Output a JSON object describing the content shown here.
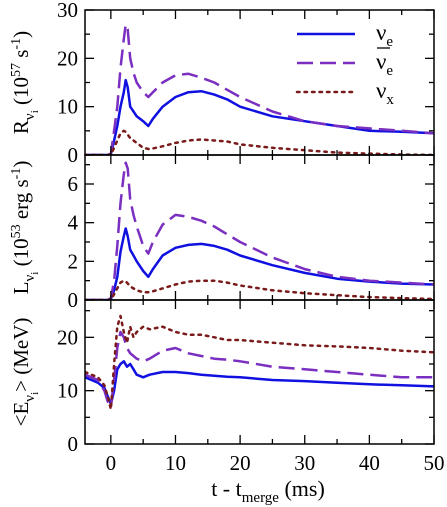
{
  "figure": {
    "xlabel": {
      "main": "t - t",
      "sub": "merge",
      "tail": " (ms)"
    }
  },
  "legend": {
    "placement": "top-right",
    "entries": [
      {
        "symbol": "ν",
        "sub": "e",
        "bar": false,
        "color": "#1010e0",
        "dash": "solid"
      },
      {
        "symbol": "ν",
        "sub": "e",
        "bar": true,
        "color": "#7a2fc0",
        "dash": "long-dash"
      },
      {
        "symbol": "ν",
        "sub": "x",
        "bar": false,
        "color": "#7a1a1a",
        "dash": "dotted"
      }
    ]
  },
  "colors": {
    "nue": "#1010e0",
    "nuebar": "#7a2fc0",
    "nux": "#7a1a1a"
  },
  "chart_data": [
    {
      "type": "line",
      "panel": "top",
      "ylabel": {
        "pre": "R",
        "sub": "ν",
        "subsub": "i",
        "post": " (10",
        "sup": "57",
        "tail": " s",
        "sup2": "-1",
        "close": ")"
      },
      "xlim": [
        -4,
        50
      ],
      "ylim": [
        0,
        30
      ],
      "yticks": [
        0,
        10,
        20,
        30
      ],
      "yticklabels": [
        "0",
        "10",
        "20",
        "30"
      ],
      "series": [
        {
          "key": "nue",
          "x": [
            -4,
            -2,
            -1,
            -0.5,
            0,
            0.5,
            1,
            1.5,
            2,
            2.3,
            2.6,
            3,
            3.5,
            4,
            5,
            5.8,
            6.5,
            8,
            10,
            12,
            14,
            16,
            18,
            20,
            25,
            30,
            35,
            40,
            45,
            50
          ],
          "y": [
            0,
            0,
            0,
            0,
            0.2,
            3,
            6,
            10,
            13,
            15.5,
            14,
            10,
            9,
            8,
            7,
            6,
            7.5,
            10,
            12,
            13,
            13.2,
            12.5,
            11.5,
            10,
            8,
            7,
            6,
            5,
            4.8,
            4.5
          ]
        },
        {
          "key": "nuebar",
          "x": [
            -4,
            -2,
            -1,
            -0.5,
            0,
            0.5,
            1,
            1.5,
            2,
            2.3,
            2.6,
            3,
            3.5,
            4,
            5,
            5.8,
            6.5,
            8,
            10,
            12,
            14,
            16,
            18,
            20,
            25,
            30,
            35,
            40,
            45,
            50
          ],
          "y": [
            0,
            0,
            0,
            0,
            0.3,
            5,
            10,
            18,
            24,
            27,
            26,
            20,
            17,
            15,
            13,
            12,
            13,
            15,
            16.5,
            16.8,
            16,
            15,
            13.5,
            12,
            9,
            7,
            6,
            5.5,
            5,
            4.5
          ]
        },
        {
          "key": "nux",
          "x": [
            -4,
            -2,
            -1,
            -0.5,
            0,
            0.5,
            1,
            1.5,
            2,
            2.3,
            3,
            4,
            5,
            6,
            8,
            10,
            12,
            14,
            16,
            18,
            20,
            25,
            30,
            35,
            40,
            45,
            50
          ],
          "y": [
            0,
            0,
            0,
            0,
            0.1,
            1.5,
            3,
            4.5,
            5,
            4.8,
            3.5,
            2.5,
            1.5,
            1.2,
            1.8,
            2.5,
            3,
            3.2,
            3,
            2.8,
            2.2,
            1.5,
            1,
            0.5,
            0.3,
            0.1,
            0
          ]
        }
      ]
    },
    {
      "type": "line",
      "panel": "middle",
      "ylabel": {
        "pre": "L",
        "sub": "ν",
        "subsub": "i",
        "post": " (10",
        "sup": "53",
        "tail": " erg s",
        "sup2": "-1",
        "close": ")"
      },
      "xlim": [
        -4,
        50
      ],
      "ylim": [
        0,
        7.5
      ],
      "yticks": [
        0,
        2,
        4,
        6
      ],
      "yticklabels": [
        "0",
        "2",
        "4",
        "6"
      ],
      "series": [
        {
          "key": "nue",
          "x": [
            -4,
            -2,
            -1,
            -0.5,
            0,
            0.5,
            1,
            1.5,
            2,
            2.3,
            2.6,
            3,
            3.5,
            4,
            5,
            5.8,
            6.5,
            8,
            10,
            12,
            14,
            16,
            18,
            20,
            25,
            30,
            35,
            40,
            45,
            50
          ],
          "y": [
            0,
            0,
            0,
            0,
            0.05,
            0.5,
            1.2,
            2.5,
            3.3,
            3.7,
            3.3,
            2.6,
            2.3,
            2,
            1.5,
            1.2,
            1.6,
            2.3,
            2.7,
            2.85,
            2.9,
            2.8,
            2.6,
            2.3,
            1.8,
            1.4,
            1.1,
            0.95,
            0.85,
            0.8
          ]
        },
        {
          "key": "nuebar",
          "x": [
            -4,
            -2,
            -1,
            -0.5,
            0,
            0.5,
            1,
            1.5,
            2,
            2.3,
            2.6,
            3,
            3.5,
            4,
            5,
            5.8,
            6.5,
            8,
            10,
            12,
            14,
            16,
            18,
            20,
            25,
            30,
            35,
            40,
            45,
            50
          ],
          "y": [
            0,
            0,
            0,
            0,
            0.1,
            1,
            2.8,
            5,
            6.5,
            7.1,
            6.8,
            5.2,
            4.4,
            3.8,
            2.8,
            2.4,
            3,
            3.9,
            4.4,
            4.3,
            4.1,
            3.8,
            3.4,
            3,
            2.2,
            1.6,
            1.2,
            1,
            0.9,
            0.8
          ]
        },
        {
          "key": "nux",
          "x": [
            -4,
            -2,
            -1,
            -0.5,
            0,
            0.5,
            1,
            1.5,
            2,
            2.5,
            3,
            4,
            5,
            6,
            8,
            10,
            12,
            14,
            16,
            18,
            20,
            25,
            30,
            35,
            40,
            45,
            50
          ],
          "y": [
            0,
            0,
            0,
            0,
            0.02,
            0.3,
            0.6,
            0.9,
            1,
            0.9,
            0.7,
            0.5,
            0.4,
            0.4,
            0.6,
            0.8,
            0.95,
            1,
            1,
            0.9,
            0.75,
            0.5,
            0.35,
            0.25,
            0.15,
            0.1,
            0.05
          ]
        }
      ]
    },
    {
      "type": "line",
      "panel": "bottom",
      "ylabel": {
        "pre": "<E",
        "sub": "ν",
        "subsub": "i",
        "post": "> (MeV)"
      },
      "xlim": [
        -4,
        50
      ],
      "ylim": [
        0,
        27
      ],
      "yticks": [
        0,
        10,
        20
      ],
      "yticklabels": [
        "0",
        "10",
        "20"
      ],
      "xticks": [
        0,
        10,
        20,
        30,
        40,
        50
      ],
      "xticklabels": [
        "0",
        "10",
        "20",
        "30",
        "40",
        "50"
      ],
      "series": [
        {
          "key": "nue",
          "x": [
            -4,
            -3,
            -2,
            -1,
            -0.5,
            0,
            0.5,
            1,
            1.5,
            2,
            2.5,
            3,
            3.5,
            4,
            5,
            6,
            8,
            10,
            12,
            14,
            16,
            18,
            20,
            25,
            30,
            35,
            40,
            45,
            50
          ],
          "y": [
            12.5,
            12,
            11.5,
            10.5,
            9,
            7.5,
            10,
            14,
            15,
            15.5,
            14.5,
            15,
            14,
            13,
            12.5,
            13,
            13.5,
            13.5,
            13.3,
            13,
            12.8,
            12.6,
            12.5,
            12,
            11.8,
            11.5,
            11.2,
            11,
            10.8
          ]
        },
        {
          "key": "nuebar",
          "x": [
            -4,
            -3,
            -2,
            -1,
            -0.5,
            0,
            0.5,
            1,
            1.5,
            2,
            2.5,
            3,
            3.5,
            4,
            5,
            6,
            8,
            10,
            12,
            14,
            16,
            18,
            20,
            25,
            30,
            35,
            40,
            45,
            50
          ],
          "y": [
            13,
            12.5,
            12,
            10,
            8,
            7,
            12,
            18,
            21,
            20,
            18,
            17,
            16.5,
            16,
            15.5,
            16,
            17.5,
            18,
            17,
            16.5,
            16,
            15.8,
            15.5,
            14.5,
            14,
            13.5,
            13,
            12.5,
            12.5
          ]
        },
        {
          "key": "nux",
          "x": [
            -4,
            -3,
            -2,
            -1,
            -0.5,
            0,
            0.5,
            1,
            1.5,
            2,
            2.5,
            3,
            3.5,
            4,
            5,
            6,
            8,
            10,
            12,
            14,
            16,
            18,
            20,
            25,
            30,
            35,
            40,
            45,
            50
          ],
          "y": [
            13.5,
            13,
            12.5,
            11,
            9,
            6.5,
            15,
            22,
            24,
            21,
            19,
            22,
            20,
            21,
            22,
            21.5,
            22,
            21,
            20.5,
            20.5,
            20,
            19.5,
            19.5,
            19,
            18.5,
            18.3,
            18,
            17.5,
            17.2
          ]
        }
      ]
    }
  ]
}
